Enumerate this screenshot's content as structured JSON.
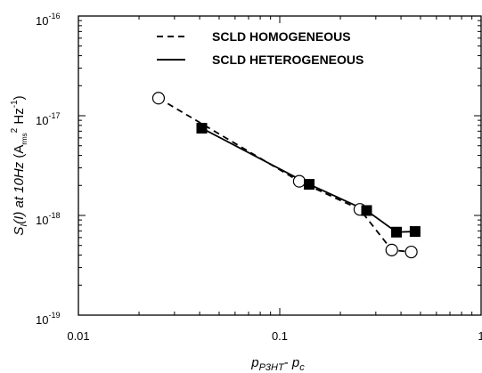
{
  "chart_data": {
    "type": "scatter",
    "x_scale": "log",
    "y_scale": "log",
    "xlim": [
      0.01,
      1
    ],
    "ylim": [
      1e-19,
      1e-16
    ],
    "grid": false,
    "legend_position": "top",
    "x_tick_labels": [
      "0.01",
      "0.1",
      "1"
    ],
    "y_tick_labels": [
      {
        "base": "10",
        "exp": "-16"
      },
      {
        "base": "10",
        "exp": "-17"
      },
      {
        "base": "10",
        "exp": "-18"
      },
      {
        "base": "10",
        "exp": "-19"
      }
    ],
    "xlabel": {
      "p": "p",
      "p_sub": "P3HT",
      "minus": "- ",
      "pc": "p",
      "pc_sub": "c"
    },
    "ylabel": {
      "S": "S",
      "S_sub": "I",
      "open": "(",
      "I": "I",
      "middle": ") at 10Hz",
      "unit_open": " (A",
      "unit_sub": "rms",
      "unit_sup2": "2",
      "unit_hz": " Hz",
      "unit_sup": "-1",
      "unit_close": ")"
    },
    "series": [
      {
        "name": "SCLD HOMOGENEOUS",
        "line_style": "dashed",
        "marker": "open-circle",
        "color": "#000000",
        "points": [
          {
            "x": 0.025,
            "y": 1.5e-17
          },
          {
            "x": 0.125,
            "y": 2.2e-18
          },
          {
            "x": 0.25,
            "y": 1.15e-18
          },
          {
            "x": 0.36,
            "y": 4.5e-19
          },
          {
            "x": 0.45,
            "y": 4.3e-19
          }
        ]
      },
      {
        "name": "SCLD HETEROGENEOUS",
        "line_style": "solid",
        "marker": "filled-square",
        "color": "#000000",
        "points": [
          {
            "x": 0.041,
            "y": 7.5e-18
          },
          {
            "x": 0.14,
            "y": 2.05e-18
          },
          {
            "x": 0.27,
            "y": 1.12e-18
          },
          {
            "x": 0.38,
            "y": 6.8e-19
          },
          {
            "x": 0.47,
            "y": 6.9e-19
          }
        ]
      }
    ]
  }
}
